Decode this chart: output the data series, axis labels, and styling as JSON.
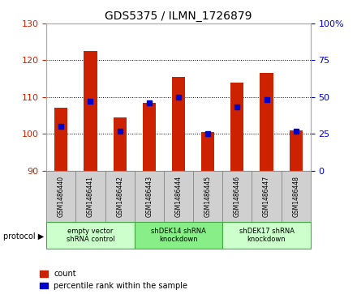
{
  "title": "GDS5375 / ILMN_1726879",
  "samples": [
    "GSM1486440",
    "GSM1486441",
    "GSM1486442",
    "GSM1486443",
    "GSM1486444",
    "GSM1486445",
    "GSM1486446",
    "GSM1486447",
    "GSM1486448"
  ],
  "counts": [
    107.0,
    122.5,
    104.5,
    108.5,
    115.5,
    100.5,
    114.0,
    116.5,
    101.0
  ],
  "percentiles": [
    30,
    47,
    27,
    46,
    50,
    25,
    43,
    48,
    27
  ],
  "ylim_left": [
    90,
    130
  ],
  "ylim_right": [
    0,
    100
  ],
  "yticks_left": [
    90,
    100,
    110,
    120,
    130
  ],
  "yticks_right": [
    0,
    25,
    50,
    75,
    100
  ],
  "bar_color": "#cc2200",
  "dot_color": "#0000cc",
  "protocols": [
    {
      "label": "empty vector\nshRNA control",
      "start": 0,
      "end": 3,
      "color": "#ccffcc"
    },
    {
      "label": "shDEK14 shRNA\nknockdown",
      "start": 3,
      "end": 6,
      "color": "#88ee88"
    },
    {
      "label": "shDEK17 shRNA\nknockdown",
      "start": 6,
      "end": 9,
      "color": "#ccffcc"
    }
  ],
  "bar_width": 0.45,
  "legend_count_label": "count",
  "legend_pct_label": "percentile rank within the sample",
  "protocol_label": "protocol"
}
